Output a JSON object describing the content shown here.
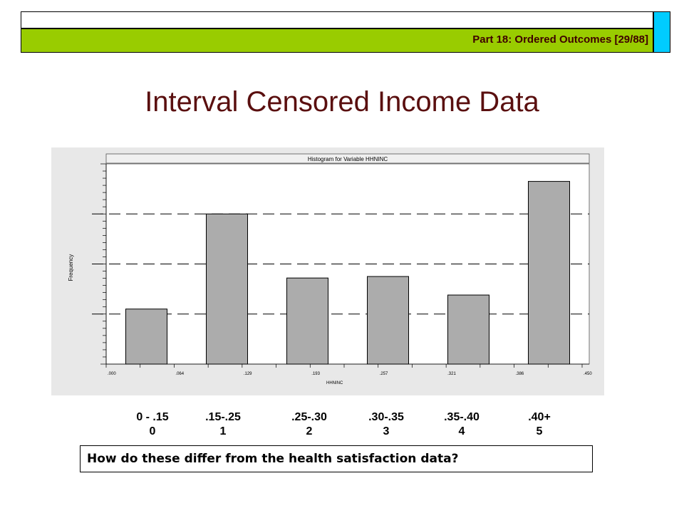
{
  "header": {
    "course_label": "Part 18: Ordered Outcomes [29/88]",
    "colors": {
      "bar": "#99cc00",
      "accent": "#00ccff",
      "text": "#3f0000"
    }
  },
  "slide_title": "Interval Censored Income Data",
  "chart_data": {
    "type": "bar",
    "title": "Histogram for Variable HHNINC",
    "xlabel": "HHNINC",
    "ylabel": "Frequency",
    "x_tick_labels": [
      ".000",
      ".064",
      ".129",
      ".193",
      ".257",
      ".321",
      ".386",
      ".450"
    ],
    "categories": [
      "0 - .15",
      ".15-.25",
      ".25-.30",
      ".30-.35",
      ".35-.40",
      ".40+"
    ],
    "values": [
      1.1,
      3.0,
      1.72,
      1.75,
      1.38,
      3.65
    ],
    "ylim": [
      0,
      4
    ],
    "grid_lines": [
      1,
      2,
      3
    ],
    "bar_color": "#acacac",
    "panel_color": "#e8e8e8"
  },
  "category_labels": [
    {
      "range": "0 - .15",
      "code": "0"
    },
    {
      "range": ".15-.25",
      "code": "1"
    },
    {
      "range": ".25-.30",
      "code": "2"
    },
    {
      "range": ".30-.35",
      "code": "3"
    },
    {
      "range": ".35-.40",
      "code": "4"
    },
    {
      "range": ".40+",
      "code": "5"
    }
  ],
  "question": "How do these differ from the health satisfaction data?"
}
